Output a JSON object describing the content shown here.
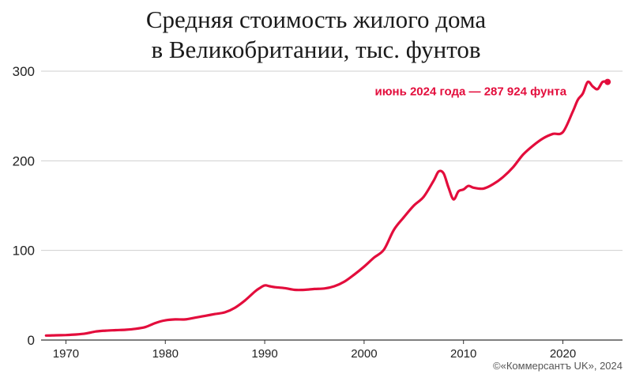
{
  "chart_data": {
    "type": "line",
    "title_lines": [
      "Средняя стоимость жилого дома",
      "в Великобритании, тыс. фунтов"
    ],
    "xlabel": "",
    "ylabel": "",
    "xlim": [
      1967.5,
      2026
    ],
    "ylim": [
      0,
      300
    ],
    "x_ticks": [
      1970,
      1980,
      1990,
      2000,
      2010,
      2020
    ],
    "y_ticks": [
      0,
      100,
      200,
      300
    ],
    "grid": "horizontal",
    "color": "#e30d3c",
    "annotation": "июнь 2024 года — 287 924 фунта",
    "series": [
      {
        "x": [
          1968,
          1969,
          1970,
          1971,
          1972,
          1973,
          1974,
          1975,
          1976,
          1977,
          1978,
          1979,
          1980,
          1981,
          1982,
          1983,
          1984,
          1985,
          1986,
          1987,
          1988,
          1989,
          1989.5,
          1990,
          1990.5,
          1991,
          1992,
          1993,
          1994,
          1995,
          1996,
          1997,
          1998,
          1999,
          2000,
          2001,
          2002,
          2003,
          2004,
          2005,
          2006,
          2007,
          2007.5,
          2008,
          2008.5,
          2009,
          2009.5,
          2010,
          2010.5,
          2011,
          2012,
          2013,
          2014,
          2015,
          2016,
          2017,
          2018,
          2019,
          2020,
          2021,
          2021.5,
          2022,
          2022.5,
          2023,
          2023.5,
          2024,
          2024.5
        ],
        "y": [
          5,
          5.3,
          5.6,
          6.2,
          7.3,
          9.5,
          10.5,
          11,
          11.5,
          12.5,
          14.5,
          19,
          22,
          23,
          23,
          25,
          27,
          29,
          31,
          36,
          44,
          54,
          58,
          61,
          60,
          59,
          58,
          56,
          56,
          57,
          57.5,
          60,
          65,
          73,
          82,
          92,
          101,
          123,
          137,
          150,
          160,
          178,
          188,
          186,
          170,
          157,
          166,
          168,
          172,
          170,
          169,
          174,
          182,
          193,
          207,
          217,
          225,
          230,
          232,
          255,
          268,
          275,
          288,
          283,
          280,
          288,
          288
        ]
      }
    ]
  },
  "credit": "©«Коммерсантъ UK», 2024"
}
